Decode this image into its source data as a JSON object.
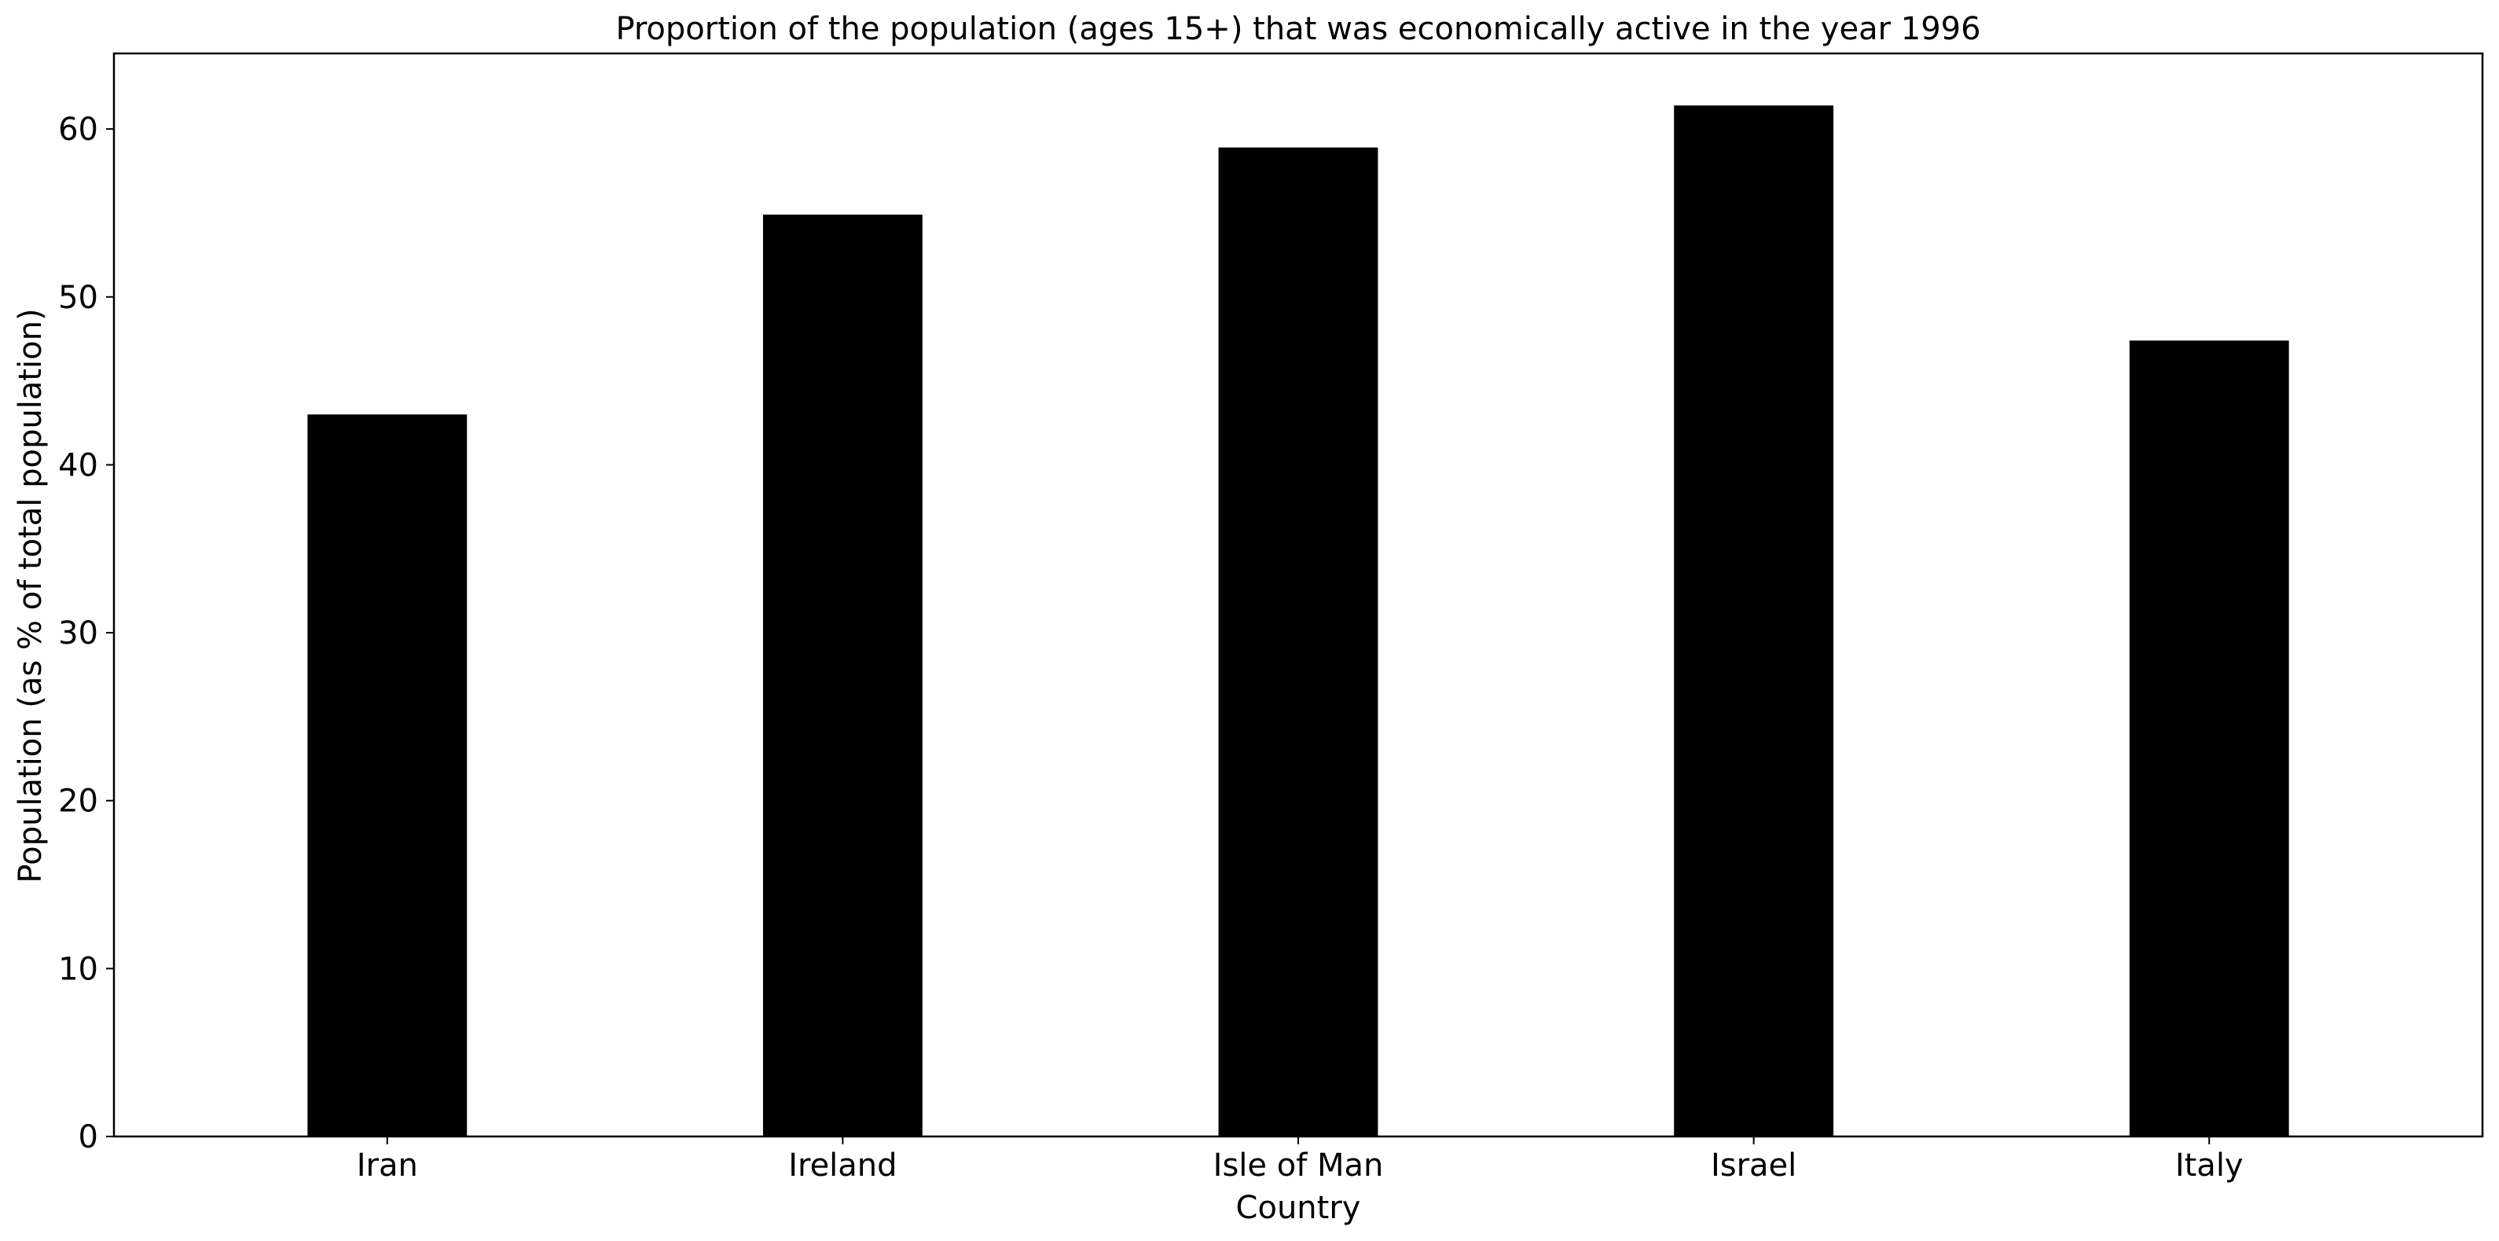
{
  "chart_data": {
    "type": "bar",
    "title": "Proportion of the population (ages 15+) that was economically active in the year 1996",
    "xlabel": "Country",
    "ylabel": "Population (as % of total population)",
    "categories": [
      "Iran",
      "Ireland",
      "Isle of Man",
      "Israel",
      "Italy"
    ],
    "values": [
      43.0,
      54.9,
      58.9,
      61.4,
      47.4
    ],
    "ylim": [
      0,
      64.5
    ],
    "yticks": [
      0,
      10,
      20,
      30,
      40,
      50,
      60
    ],
    "bar_color": "#000000",
    "grid": false,
    "legend": "none"
  }
}
